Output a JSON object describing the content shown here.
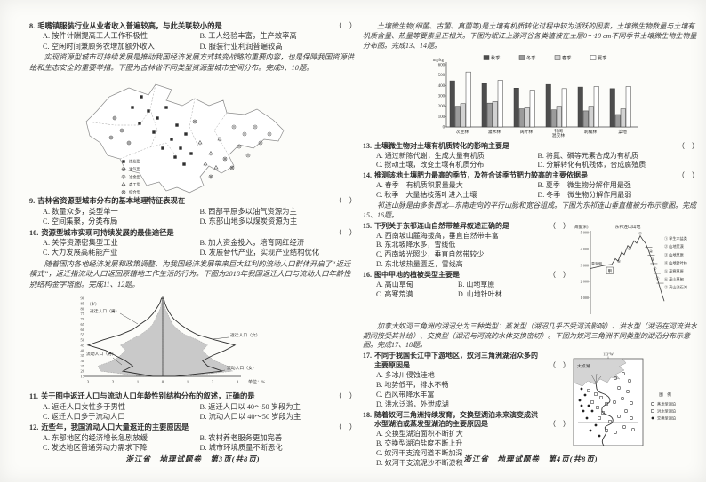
{
  "misc": {
    "bracket": "（　）"
  },
  "colors": {
    "page": "#fcfcf9",
    "ink": "#343434",
    "bar_fills": [
      "#4d4d4d",
      "#9b9b9b",
      "#d2d2d2",
      "#ffffff"
    ],
    "pyramid_fill": "#c9c9c9"
  },
  "left": {
    "q8": {
      "num": "8.",
      "stem": "毛嘴镇服装行业从业者收入普遍较高，与此关联较小的是",
      "options": [
        "A. 按件计酬提高工人工作积极性",
        "B. 工人经验丰富，生产效率高",
        "C. 空闲时间兼顾务农增加额外收入",
        "D. 服装行业利润普遍较高"
      ]
    },
    "p1": "实现资源型城市可持续发展是推动我国经济发展方式转变战略的重要内容，也是保障我国资源供给和生态安全的重要举措。下图为吉林省不同类型资源型城市空间分布。完成9、10题。",
    "q9": {
      "num": "9.",
      "stem": "吉林省资源型城市分布的基本地理特征表现在",
      "options": [
        "A. 数量众多，类型单一",
        "B. 西部平原多以油气资源为主",
        "C. 空间集聚，分类布局",
        "D. 东部山地多以煤炭资源为主"
      ]
    },
    "q10": {
      "num": "10.",
      "stem": "资源型城市实现可持续发展的最佳途径是",
      "options": [
        "A. 关停资源密集型工业",
        "B. 加大资金投入，培育网红经济",
        "C. 大力发展高耗能产业",
        "D. 发展替代产业，实现产业结构优化"
      ]
    },
    "p2": "随着国内各地经济发展和政策调整，为我国经济发展带来巨大红利的流动人口群体开启了“返迁模式”，返迁指流动人口返回原籍地工作生活的行为。下图为2018年我国返迁人口与流动人口年龄性别结构金字塔图。完成11、12题。",
    "q11": {
      "num": "11.",
      "stem": "关于图中返迁人口与流动人口年龄性别结构分布的叙述，正确的是",
      "options": [
        "A. 返迁人口女性多于男性",
        "B. 返迁人口以 40～50 岁段为主",
        "C. 返迁人口多于流动人口",
        "D. 流动人口以 40～50 岁段为主"
      ]
    },
    "q12": {
      "num": "12.",
      "stem": "近些年，我国流动人口大量返迁的主要原因是",
      "options": [
        "A. 东部地区的经济增长急剧放缓",
        "B. 农村养老服务更加完善",
        "C. 发达地区普通劳动力需求下降",
        "D. 城市环境质量不断恶化"
      ]
    },
    "footer": "浙江省　地理试题卷　第3页(共8页)"
  },
  "right": {
    "p3": "土壤微生物(细菌、古菌、真菌等)是土壤有机质转化过程中较为活跃的因素，土壤微生物数量与土壤有机质含量、热量等要素呈正相关。下图为岷江上游河谷各类植被在土层0～10 cm不同季节土壤微生物生物量分布图。完成13、14题。",
    "q13": {
      "num": "13.",
      "stem": "土壤微生物对土壤有机质转化的影响主要是",
      "options": [
        "A. 通过新陈代谢，生成大量有机质",
        "B. 将氮、磷等元素合成为有机质",
        "C. 搅动土壤，改变土壤有机质分布",
        "D. 分解转化有机残体，合成腐殖质"
      ]
    },
    "q14": {
      "num": "14.",
      "stem": "推测该地土壤肥力最高的季节，及符合该季节肥力较高的主要依据是",
      "options": [
        "A. 春季　有机质积累量最大",
        "B. 夏季　微生物分解作用最强",
        "C. 秋季　大量枯枝落叶进入土壤",
        "D. 冬季　微生物分解作用最弱"
      ]
    },
    "p4": "祁连山脉是由多条西北—东南走向的平行山脉和宽谷组成。下图为东祁连山垂直植被分布示意图。完成15、16题。",
    "q15": {
      "num": "15.",
      "stem": "下列关于东祁连山自然带差异叙述正确的是",
      "options": [
        "A. 西南坡山麓海拔高，垂直自然带丰富",
        "B. 东北坡降水多，雪线低",
        "C. 西南坡光照少，垂直自然带较少",
        "D. 东北坡热量匮乏，雪线高"
      ]
    },
    "q16": {
      "num": "16.",
      "stem": "图中甲地的植被类型主要是",
      "options": [
        "A. 高山草甸",
        "B. 山地草原",
        "C. 高寒荒漠",
        "D. 山地针叶林"
      ]
    },
    "p5": "加拿大奴河三角洲的湖沼分为三种类型：蒸发型（湖沼几乎不受河流影响）、洪水型（湖沼在河流洪水期间接受其补给）、交换型（湖沼与河流的水体交换密切）。下图为奴河三角洲不同类型的湖沼分布示意图。完成17、18题。",
    "q17": {
      "num": "17.",
      "stem": "不同于我国长江中下游地区，奴河三角洲湖沼众多的主要原因是",
      "options": [
        "A. 多冰川侵蚀洼地",
        "B. 地势低平，排水不畅",
        "C. 西风带降水丰富",
        "D. 洪水泛滥，外泄成湖"
      ]
    },
    "q18": {
      "num": "18.",
      "stem": "随着奴河三角洲持续发育，交换型湖泊未来演变成洪水型湖泊或蒸发型湖泊的主要原因是",
      "options": [
        "A. 交换型湖泊面积不断扩大",
        "B. 交换型湖泊盐度不断上升",
        "C. 奴河干支流河道不断加深",
        "D. 奴河干支流泥沙不断淤积"
      ]
    },
    "footer": "浙江省　地理试题卷　第4页(共8页)"
  },
  "figures": {
    "jilin_map": {
      "legend": [
        {
          "symbol": "filled-square",
          "label": "煤炭型"
        },
        {
          "symbol": "circle-cross",
          "label": "油气型"
        },
        {
          "symbol": "circle-dot",
          "label": "冶金型"
        },
        {
          "symbol": "tree",
          "label": "森工型"
        },
        {
          "symbol": "circle-x",
          "label": "综合型"
        }
      ]
    },
    "pyramid_labels": {
      "age_unit": "（岁）",
      "x_unit": "单位：%"
    },
    "mountain": {
      "title": "东祁连山山地",
      "ylabel": "海拔(米)",
      "yticks": [
        "5 000",
        "4 000",
        "3 000",
        "2 000",
        "1 000"
      ],
      "side_label": "青海侧",
      "marker": "甲",
      "legend": [
        "① 旱生木盐类",
        "② 山地荒漠",
        "③ 山地草原",
        "④ 山地针叶林",
        "⑤ 高寒草原",
        "⑥ 高山草甸",
        "⑦ 高山流石滩"
      ]
    },
    "delta_map": {
      "lon_label": "113°W",
      "lake_label": "大奴湖",
      "legend_title": "图　例",
      "legend": [
        {
          "symbol": "open-circle",
          "label": "蒸发型湖泊"
        },
        {
          "symbol": "open-square",
          "label": "洪水型湖泊"
        },
        {
          "symbol": "filled-dot",
          "label": "交换型湖泊"
        }
      ]
    }
  },
  "chart_data": [
    {
      "type": "bar",
      "categories": [
        "次生林",
        "灌木林",
        "阔叶林",
        "针阔混交林",
        "刺槐林",
        "菜地"
      ],
      "series": [
        {
          "name": "秋季",
          "values": [
            445,
            420,
            375,
            410,
            385,
            370
          ]
        },
        {
          "name": "冬季",
          "values": [
            200,
            230,
            175,
            165,
            155,
            120
          ]
        },
        {
          "name": "春季",
          "values": [
            225,
            245,
            185,
            200,
            200,
            175
          ]
        },
        {
          "name": "夏季",
          "values": [
            530,
            450,
            355,
            370,
            390,
            390
          ]
        }
      ],
      "xlabel": "",
      "ylabel": "mg/kg",
      "ylim": [
        0,
        600
      ],
      "legend_position": "top"
    },
    {
      "type": "population-pyramid",
      "ages": [
        15,
        20,
        25,
        30,
        35,
        40,
        45,
        50,
        55,
        60,
        65,
        70,
        75,
        80,
        85,
        90
      ],
      "xlabel": "单位：%",
      "xlim": [
        -3,
        3
      ],
      "series": [
        {
          "name": "流动人口（男）",
          "side": "left",
          "style": "area",
          "values": [
            0.8,
            2.5,
            2.6,
            2.0,
            1.7,
            1.5,
            1.7,
            1.3,
            0.9,
            0.6,
            0.4,
            0.3,
            0.2,
            0.1,
            0.05,
            0.02
          ]
        },
        {
          "name": "流动人口（女）",
          "side": "right",
          "style": "area",
          "values": [
            0.9,
            2.8,
            2.6,
            2.1,
            1.8,
            1.6,
            1.8,
            1.4,
            0.9,
            0.6,
            0.4,
            0.3,
            0.2,
            0.1,
            0.05,
            0.02
          ]
        },
        {
          "name": "返迁人口（男）",
          "side": "left",
          "style": "line",
          "values": [
            0.4,
            1.6,
            1.2,
            1.5,
            1.9,
            2.3,
            3.0,
            2.4,
            1.7,
            1.2,
            0.9,
            0.6,
            0.4,
            0.25,
            0.12,
            0.05
          ]
        },
        {
          "name": "返迁人口（女）",
          "side": "right",
          "style": "line",
          "values": [
            0.5,
            2.4,
            1.8,
            1.6,
            2.0,
            2.5,
            2.9,
            2.1,
            1.4,
            1.0,
            0.7,
            0.45,
            0.3,
            0.18,
            0.09,
            0.04
          ]
        }
      ]
    }
  ]
}
